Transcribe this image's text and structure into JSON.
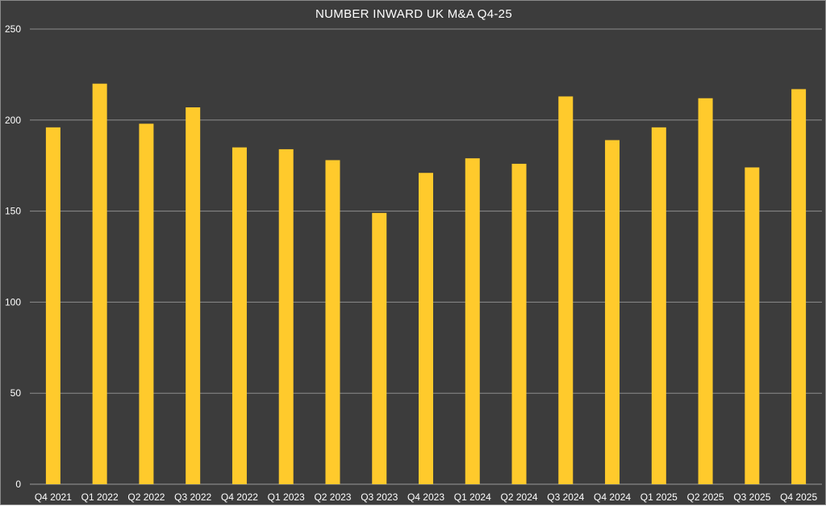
{
  "chart_data": {
    "type": "bar",
    "title": "NUMBER INWARD UK M&A Q4-25",
    "xlabel": "",
    "ylabel": "",
    "categories": [
      "Q4 2021",
      "Q1 2022",
      "Q2 2022",
      "Q3 2022",
      "Q4 2022",
      "Q1 2023",
      "Q2 2023",
      "Q3 2023",
      "Q4 2023",
      "Q1 2024",
      "Q2 2024",
      "Q3 2024",
      "Q4 2024",
      "Q1 2025",
      "Q2 2025",
      "Q3 2025",
      "Q4 2025"
    ],
    "values": [
      196,
      220,
      198,
      207,
      185,
      184,
      178,
      149,
      171,
      179,
      176,
      213,
      189,
      196,
      212,
      174,
      217
    ],
    "ylim": [
      0,
      250
    ],
    "yticks": [
      0,
      50,
      100,
      150,
      200,
      250
    ],
    "grid": true,
    "legend": "none",
    "colors": {
      "background": "#3c3c3c",
      "bar": "#ffca2c",
      "text": "#ffffff",
      "grid": "#8c8c8c"
    }
  }
}
